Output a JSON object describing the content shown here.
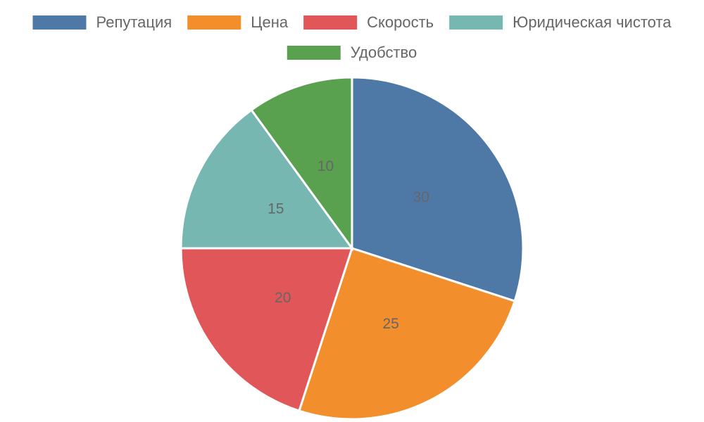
{
  "chart_data": {
    "type": "pie",
    "categories": [
      "Репутация",
      "Цена",
      "Скорость",
      "Юридическая чистота",
      "Удобство"
    ],
    "values": [
      30,
      25,
      20,
      15,
      10
    ],
    "colors": [
      "#4e79a7",
      "#f28e2b",
      "#e15759",
      "#76b7b2",
      "#59a14f"
    ],
    "legend": "top"
  }
}
